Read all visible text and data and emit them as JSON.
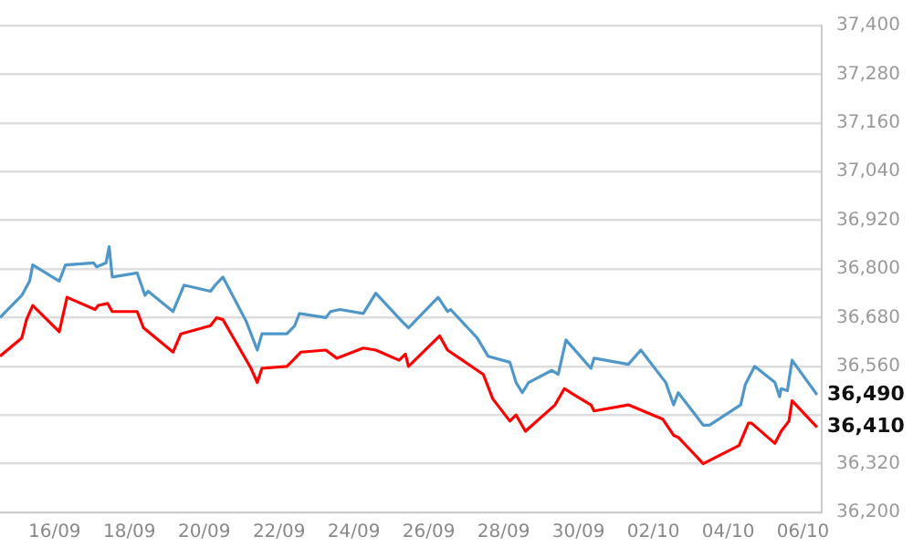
{
  "chart_data": {
    "type": "line",
    "marker": "none",
    "line_style": "solid",
    "grid": "y",
    "legend": false,
    "xlim": [
      "--09-14T13:00",
      "--10-06T12:00"
    ],
    "xticks": [
      {
        "value": "--09-16",
        "label": "16/09"
      },
      {
        "value": "--09-18",
        "label": "18/09"
      },
      {
        "value": "--09-20",
        "label": "20/09"
      },
      {
        "value": "--09-22",
        "label": "22/09"
      },
      {
        "value": "--09-24",
        "label": "24/09"
      },
      {
        "value": "--09-26",
        "label": "26/09"
      },
      {
        "value": "--09-28",
        "label": "28/09"
      },
      {
        "value": "--09-30",
        "label": "30/09"
      },
      {
        "value": "--10-02",
        "label": "02/10"
      },
      {
        "value": "--10-04",
        "label": "04/10"
      },
      {
        "value": "--10-06",
        "label": "06/10"
      }
    ],
    "ylim": [
      36200,
      37400
    ],
    "yticks": [
      {
        "value": 36200,
        "label": "36,200"
      },
      {
        "value": 36320,
        "label": "36,320"
      },
      {
        "value": 36440,
        "label": null
      },
      {
        "value": 36560,
        "label": "36,560"
      },
      {
        "value": 36680,
        "label": "36,680"
      },
      {
        "value": 36800,
        "label": "36,800"
      },
      {
        "value": 36920,
        "label": "36,920"
      },
      {
        "value": 37040,
        "label": "37,040"
      },
      {
        "value": 37160,
        "label": "37,160"
      },
      {
        "value": 37280,
        "label": "37,280"
      },
      {
        "value": 37400,
        "label": "37,400"
      }
    ],
    "series": [
      {
        "color": "#4f97c8",
        "x": [
          "--09-14T13:00",
          "--09-15T03:00",
          "--09-15T08:00",
          "--09-15T10:00",
          "--09-16T03:00",
          "--09-16T07:00",
          "--09-17T01:00",
          "--09-17T03:00",
          "--09-17T09:00",
          "--09-17T11:00",
          "--09-17T13:00",
          "--09-18T05:00",
          "--09-18T10:00",
          "--09-18T12:00",
          "--09-19T04:00",
          "--09-19T11:00",
          "--09-20T04:00",
          "--09-20T07:00",
          "--09-20T12:00",
          "--09-21T03:00",
          "--09-21T10:00",
          "--09-21T13:00",
          "--09-22T05:00",
          "--09-22T10:00",
          "--09-22T13:00",
          "--09-23T06:00",
          "--09-23T09:00",
          "--09-23T15:00",
          "--09-24T06:00",
          "--09-24T14:00",
          "--09-25T07:00",
          "--09-25T11:00",
          "--09-26T06:00",
          "--09-26T12:00",
          "--09-26T14:00",
          "--09-27T07:00",
          "--09-27T14:00",
          "--09-28T04:00",
          "--09-28T08:00",
          "--09-28T12:00",
          "--09-28T16:00",
          "--09-29T07:00",
          "--09-29T11:00",
          "--09-29T16:00",
          "--09-30T08:00",
          "--09-30T10:00",
          "--10-01T08:00",
          "--10-01T16:00",
          "--10-02T08:00",
          "--10-02T13:00",
          "--10-02T16:00",
          "--10-03T08:00",
          "--10-03T12:00",
          "--10-04T08:00",
          "--10-04T11:00",
          "--10-04T17:00",
          "--10-05T06:00",
          "--10-05T09:00",
          "--10-05T10:00",
          "--10-05T14:00",
          "--10-05T17:00",
          "--10-06T09:00"
        ],
        "values": [
          36680,
          36735,
          36770,
          36810,
          36770,
          36810,
          36815,
          36805,
          36815,
          36855,
          36780,
          36790,
          36735,
          36745,
          36695,
          36760,
          36745,
          36760,
          36780,
          36670,
          36600,
          36640,
          36640,
          36660,
          36690,
          36680,
          36695,
          36700,
          36690,
          36740,
          36670,
          36655,
          36730,
          36695,
          36700,
          36630,
          36585,
          36570,
          36520,
          36495,
          36520,
          36550,
          36540,
          36625,
          36555,
          36580,
          36565,
          36600,
          36520,
          36465,
          36495,
          36415,
          36415,
          36465,
          36515,
          36560,
          36520,
          36485,
          36505,
          36500,
          36575,
          36490
        ]
      },
      {
        "color": "#ff0000",
        "x": [
          "--09-14T13:00",
          "--09-15T03:00",
          "--09-15T06:00",
          "--09-15T10:00",
          "--09-16T03:00",
          "--09-16T08:00",
          "--09-17T02:00",
          "--09-17T04:00",
          "--09-17T10:00",
          "--09-17T13:00",
          "--09-18T05:00",
          "--09-18T09:00",
          "--09-19T04:00",
          "--09-19T09:00",
          "--09-20T04:00",
          "--09-20T08:00",
          "--09-20T12:00",
          "--09-21T06:00",
          "--09-21T10:00",
          "--09-21T13:00",
          "--09-22T05:00",
          "--09-22T09:00",
          "--09-22T14:00",
          "--09-23T06:00",
          "--09-23T13:00",
          "--09-24T06:00",
          "--09-24T14:00",
          "--09-25T05:00",
          "--09-25T09:00",
          "--09-25T11:00",
          "--09-26T07:00",
          "--09-26T12:00",
          "--09-27T11:00",
          "--09-27T17:00",
          "--09-28T04:00",
          "--09-28T08:00",
          "--09-28T14:00",
          "--09-29T09:00",
          "--09-29T15:00",
          "--09-29T21:00",
          "--09-30T08:00",
          "--09-30T10:00",
          "--10-01T08:00",
          "--10-02T06:00",
          "--10-02T13:00",
          "--10-02T16:00",
          "--10-03T08:00",
          "--10-04T07:00",
          "--10-04T13:00",
          "--10-04T15:00",
          "--10-05T06:00",
          "--10-05T10:00",
          "--10-05T15:00",
          "--10-05T17:00",
          "--10-06T09:00"
        ],
        "values": [
          36585,
          36630,
          36675,
          36710,
          36645,
          36730,
          36700,
          36710,
          36715,
          36695,
          36695,
          36655,
          36595,
          36640,
          36660,
          36680,
          36675,
          36555,
          36520,
          36555,
          36560,
          36575,
          36595,
          36600,
          36580,
          36605,
          36600,
          36575,
          36590,
          36560,
          36635,
          36600,
          36540,
          36480,
          36425,
          36440,
          36400,
          36465,
          36505,
          36490,
          36465,
          36450,
          36465,
          36430,
          36390,
          36385,
          36320,
          36365,
          36420,
          36420,
          36370,
          36400,
          36425,
          36475,
          36410
        ]
      }
    ],
    "annotations": [
      {
        "text": "36,490",
        "x": "--10-06T09:00",
        "y": 36490
      },
      {
        "text": "36,410",
        "x": "--10-06T09:00",
        "y": 36410
      }
    ]
  }
}
